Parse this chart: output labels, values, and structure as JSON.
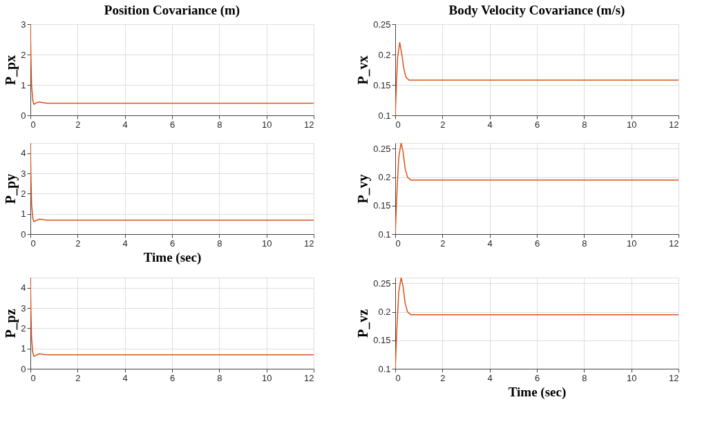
{
  "chart_data": [
    {
      "type": "line",
      "title": "Position Covariance (m)",
      "ylabel": "P_px",
      "x": [
        0,
        0.02,
        0.05,
        0.1,
        0.15,
        0.25,
        0.35,
        0.5,
        0.7,
        12
      ],
      "series": [
        {
          "color": "#d95319",
          "values": [
            3,
            2.0,
            1.0,
            0.5,
            0.36,
            0.41,
            0.44,
            0.42,
            0.4,
            0.4
          ]
        }
      ],
      "xlim": [
        0,
        12
      ],
      "xticks": [
        0,
        2,
        4,
        6,
        8,
        10,
        12
      ],
      "ylim": [
        0,
        3
      ],
      "yticks": [
        0,
        1,
        2,
        3
      ],
      "grid": true
    },
    {
      "type": "line",
      "title": "Body Velocity Covariance (m/s)",
      "ylabel": "P_vx",
      "x": [
        0,
        0.05,
        0.1,
        0.19,
        0.28,
        0.35,
        0.45,
        0.58,
        12
      ],
      "series": [
        {
          "color": "#d95319",
          "values": [
            0.1,
            0.15,
            0.195,
            0.22,
            0.2,
            0.18,
            0.163,
            0.158,
            0.158
          ]
        }
      ],
      "xlim": [
        0,
        12
      ],
      "xticks": [
        0,
        2,
        4,
        6,
        8,
        10,
        12
      ],
      "ylim": [
        0.1,
        0.25
      ],
      "yticks": [
        0.1,
        0.15,
        0.2,
        0.25
      ],
      "grid": true
    },
    {
      "type": "line",
      "xlabel": "Time (sec)",
      "ylabel": "P_py",
      "x": [
        0,
        0.02,
        0.05,
        0.1,
        0.15,
        0.25,
        0.4,
        0.55,
        0.7,
        12
      ],
      "series": [
        {
          "color": "#d95319",
          "values": [
            4.5,
            3,
            1.5,
            0.8,
            0.61,
            0.68,
            0.74,
            0.71,
            0.69,
            0.69
          ]
        }
      ],
      "xlim": [
        0,
        12
      ],
      "xticks": [
        0,
        2,
        4,
        6,
        8,
        10,
        12
      ],
      "ylim": [
        0,
        4.5
      ],
      "yticks": [
        0,
        1,
        2,
        3,
        4
      ],
      "grid": true
    },
    {
      "type": "line",
      "ylabel": "P_vy",
      "x": [
        0,
        0.08,
        0.15,
        0.25,
        0.33,
        0.42,
        0.52,
        0.65,
        12
      ],
      "series": [
        {
          "color": "#d95319",
          "values": [
            0.1,
            0.18,
            0.235,
            0.26,
            0.245,
            0.215,
            0.2,
            0.195,
            0.195
          ]
        }
      ],
      "xlim": [
        0,
        12
      ],
      "xticks": [
        0,
        2,
        4,
        6,
        8,
        10,
        12
      ],
      "ylim": [
        0.1,
        0.26
      ],
      "yticks": [
        0.1,
        0.15,
        0.2,
        0.25
      ],
      "grid": true
    },
    {
      "type": "line",
      "ylabel": "P_pz",
      "x": [
        0,
        0.02,
        0.05,
        0.1,
        0.15,
        0.25,
        0.4,
        0.55,
        0.7,
        12
      ],
      "series": [
        {
          "color": "#d95319",
          "values": [
            4.5,
            3,
            1.5,
            0.8,
            0.61,
            0.68,
            0.74,
            0.71,
            0.69,
            0.69
          ]
        }
      ],
      "xlim": [
        0,
        12
      ],
      "xticks": [
        0,
        2,
        4,
        6,
        8,
        10,
        12
      ],
      "ylim": [
        0,
        4.5
      ],
      "yticks": [
        0,
        1,
        2,
        3,
        4
      ],
      "grid": true
    },
    {
      "type": "line",
      "xlabel": "Time (sec)",
      "ylabel": "P_vz",
      "x": [
        0,
        0.08,
        0.15,
        0.25,
        0.33,
        0.42,
        0.52,
        0.65,
        12
      ],
      "series": [
        {
          "color": "#d95319",
          "values": [
            0.1,
            0.18,
            0.235,
            0.26,
            0.245,
            0.215,
            0.2,
            0.195,
            0.195
          ]
        }
      ],
      "xlim": [
        0,
        12
      ],
      "xticks": [
        0,
        2,
        4,
        6,
        8,
        10,
        12
      ],
      "ylim": [
        0.1,
        0.26
      ],
      "yticks": [
        0.1,
        0.15,
        0.2,
        0.25
      ],
      "grid": true
    }
  ]
}
